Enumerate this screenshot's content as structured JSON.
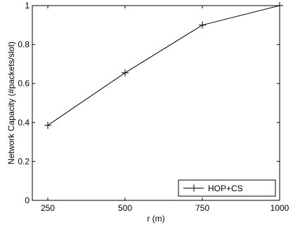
{
  "chart_data": {
    "type": "line",
    "xlabel": "r (m)",
    "ylabel": "Network Capacity (#packets/slot)",
    "xlim": [
      200,
      1000
    ],
    "ylim": [
      0,
      1
    ],
    "x_ticks": [
      250,
      500,
      750,
      1000
    ],
    "y_ticks": [
      0,
      0.2,
      0.4,
      0.6,
      0.8,
      1
    ],
    "y_tick_labels": [
      "0",
      "0.2",
      "0.4",
      "0.6",
      "0.8",
      "1"
    ],
    "grid": false,
    "legend_position": "bottom-right",
    "series": [
      {
        "name": "HOP+CS",
        "marker": "plus",
        "color": "#000000",
        "x": [
          250,
          500,
          750,
          1000
        ],
        "y": [
          0.385,
          0.655,
          0.9,
          1.0
        ]
      }
    ]
  }
}
